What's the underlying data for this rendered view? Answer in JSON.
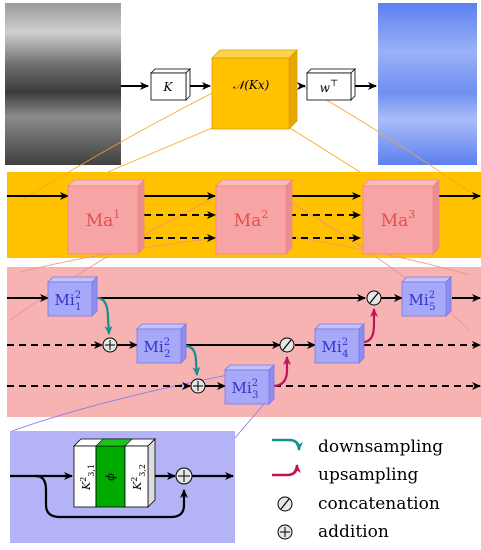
{
  "top_pipeline": {
    "k_label": "K",
    "n_label": "𝒩(Kx)",
    "w_label": "w",
    "w_superscript": "⊤"
  },
  "macro_blocks": [
    {
      "base": "Ma",
      "sup": "1"
    },
    {
      "base": "Ma",
      "sup": "2"
    },
    {
      "base": "Ma",
      "sup": "3"
    }
  ],
  "micro_blocks": [
    {
      "base": "Mi",
      "sup": "2",
      "sub": "1"
    },
    {
      "base": "Mi",
      "sup": "2",
      "sub": "2"
    },
    {
      "base": "Mi",
      "sup": "2",
      "sub": "3"
    },
    {
      "base": "Mi",
      "sup": "2",
      "sub": "4"
    },
    {
      "base": "Mi",
      "sup": "2",
      "sub": "5"
    }
  ],
  "detail": {
    "conv1_base": "K",
    "conv1_sup": "2",
    "conv1_sub": "3,1",
    "phi": "ϕ",
    "conv2_base": "K",
    "conv2_sup": "2",
    "conv2_sub": "3,2"
  },
  "legend": {
    "downsampling": "downsampling",
    "upsampling": "upsampling",
    "concatenation": "concatenation",
    "addition": "addition"
  },
  "colors": {
    "macro_band": "#ffc100",
    "micro_band": "#f7b2b2",
    "detail_band": "#b3b3f5",
    "macro_block": "#f7a4a4",
    "micro_block": "#a8a8f8",
    "downsampling": "#15908c",
    "upsampling": "#c0145a",
    "phi_green": "#00aa00"
  }
}
